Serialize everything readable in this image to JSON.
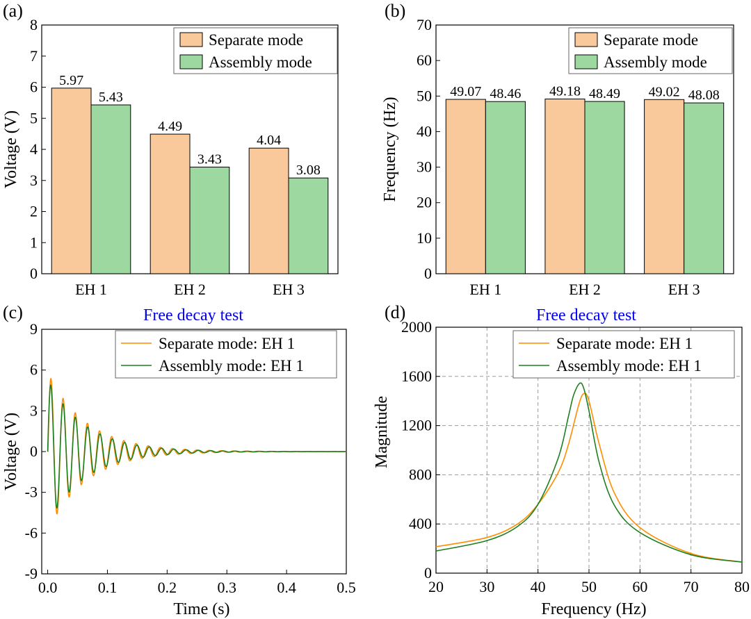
{
  "chart_data": [
    {
      "panel": "(a)",
      "type": "bar",
      "categories": [
        "EH 1",
        "EH 2",
        "EH 3"
      ],
      "series": [
        {
          "name": "Separate mode",
          "values": [
            5.97,
            4.49,
            4.04
          ],
          "labels": [
            "5.97",
            "4.49",
            "4.04"
          ],
          "color": "#f9c89b"
        },
        {
          "name": "Assembly mode",
          "values": [
            5.43,
            3.43,
            3.08
          ],
          "labels": [
            "5.43",
            "3.43",
            "3.08"
          ],
          "color": "#9cd89f"
        }
      ],
      "ylabel": "Voltage (V)",
      "xlabel": "",
      "ylim": [
        0,
        8
      ],
      "yticks": [
        0,
        1,
        2,
        3,
        4,
        5,
        6,
        7,
        8
      ],
      "legend_position": "top-right"
    },
    {
      "panel": "(b)",
      "type": "bar",
      "categories": [
        "EH 1",
        "EH 2",
        "EH 3"
      ],
      "series": [
        {
          "name": "Separate mode",
          "values": [
            49.07,
            49.18,
            49.02
          ],
          "labels": [
            "49.07",
            "49.18",
            "49.02"
          ],
          "color": "#f9c89b"
        },
        {
          "name": "Assembly mode",
          "values": [
            48.46,
            48.49,
            48.08
          ],
          "labels": [
            "48.46",
            "48.49",
            "48.08"
          ],
          "color": "#9cd89f"
        }
      ],
      "ylabel": "Frequency (Hz)",
      "xlabel": "",
      "ylim": [
        0,
        70
      ],
      "yticks": [
        0,
        10,
        20,
        30,
        40,
        50,
        60,
        70
      ],
      "legend_position": "top-right"
    },
    {
      "panel": "(c)",
      "type": "line",
      "title": "Free decay test",
      "xlabel": "Time (s)",
      "ylabel": "Voltage (V)",
      "xlim": [
        -0.01,
        0.5
      ],
      "ylim": [
        -9,
        9
      ],
      "xticks": [
        0.0,
        0.1,
        0.2,
        0.3,
        0.4,
        0.5
      ],
      "xtick_labels": [
        "0.0",
        "0.1",
        "0.2",
        "0.3",
        "0.4",
        "0.5"
      ],
      "yticks": [
        -9,
        -6,
        -3,
        0,
        3,
        6,
        9
      ],
      "ytick_labels": [
        "-9",
        "-6",
        "-3",
        "0",
        "3",
        "6",
        "9"
      ],
      "series": [
        {
          "name": "Separate mode: EH 1",
          "color": "#ff8c00",
          "freq_hz": 49.07,
          "peak": 5.8,
          "decay_per_s": 15.5,
          "phase_shift_s": 0.0004
        },
        {
          "name": "Assembly mode: EH 1",
          "color": "#1e7f1e",
          "freq_hz": 48.46,
          "peak": 5.3,
          "decay_per_s": 16.0,
          "phase_shift_s": 0.0
        }
      ],
      "legend_position": "top-right"
    },
    {
      "panel": "(d)",
      "type": "line",
      "title": "Free decay test",
      "xlabel": "Frequency (Hz)",
      "ylabel": "Magnitude",
      "xlim": [
        20,
        80
      ],
      "ylim": [
        0,
        2000
      ],
      "xticks": [
        20,
        30,
        40,
        50,
        60,
        70,
        80
      ],
      "xtick_labels": [
        "20",
        "30",
        "40",
        "50",
        "60",
        "70",
        "80"
      ],
      "yticks": [
        0,
        400,
        800,
        1200,
        1600,
        2000
      ],
      "ytick_labels": [
        "0",
        "400",
        "800",
        "1200",
        "1600",
        "2000"
      ],
      "grid": true,
      "series": [
        {
          "name": "Separate mode: EH 1",
          "color": "#ff8c00",
          "peak_freq": 49.0,
          "peak_mag": 1460,
          "x": [
            20,
            30,
            36,
            40,
            44,
            46,
            48,
            49,
            50,
            52,
            55,
            60,
            70,
            80
          ],
          "y": [
            215,
            290,
            400,
            560,
            820,
            1050,
            1370,
            1460,
            1400,
            1050,
            650,
            370,
            160,
            90
          ]
        },
        {
          "name": "Assembly mode: EH 1",
          "color": "#1e7f1e",
          "peak_freq": 48.2,
          "peak_mag": 1545,
          "x": [
            20,
            30,
            36,
            40,
            44,
            46,
            47,
            48.2,
            49,
            50,
            52,
            55,
            60,
            70,
            80
          ],
          "y": [
            180,
            265,
            380,
            560,
            940,
            1280,
            1450,
            1545,
            1500,
            1320,
            900,
            550,
            330,
            150,
            90
          ]
        }
      ],
      "legend_position": "top-right"
    }
  ]
}
